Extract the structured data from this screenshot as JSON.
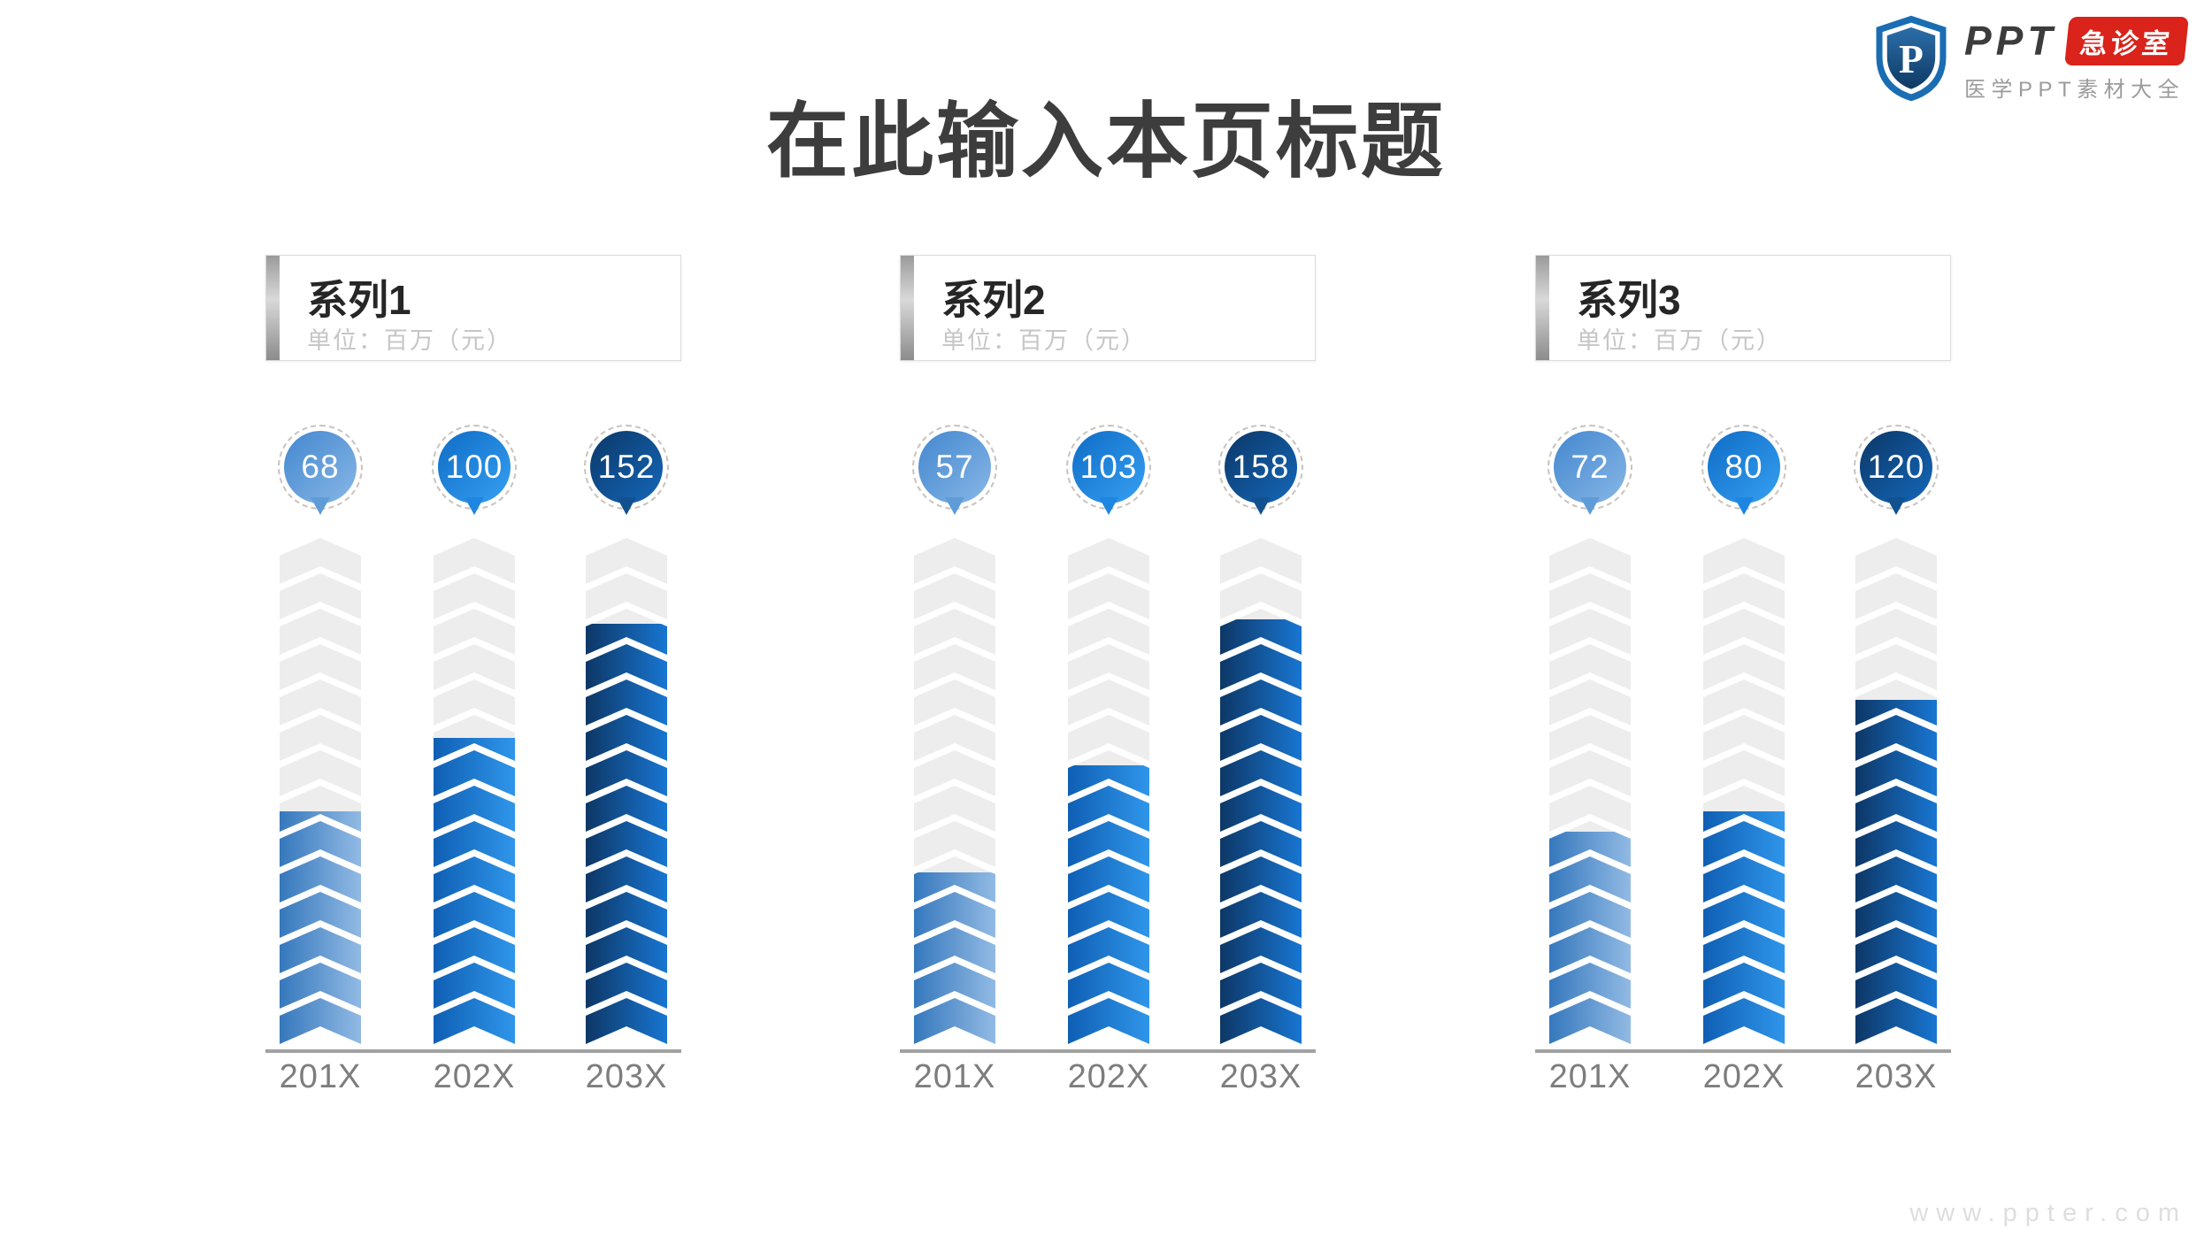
{
  "page": {
    "title": "在此输入本页标题",
    "watermark": "www.ppter.com"
  },
  "logo": {
    "brand": "PPT",
    "tag": "急诊室",
    "subtitle": "医学PPT素材大全",
    "shield_letter": "P",
    "colors": {
      "shield_ring": "#1a6db3",
      "shield_fill_top": "#2c6ea9",
      "shield_fill_bottom": "#0e3a63",
      "tag_bg": "#d9231b",
      "brand_text": "#3c3c3c"
    }
  },
  "chart_data": {
    "type": "bar",
    "categories": [
      "201X",
      "202X",
      "203X"
    ],
    "unit_label": "单位：百万（元）",
    "panels": [
      {
        "name": "系列1",
        "values": [
          68,
          100,
          152
        ],
        "fill_fractions": [
          0.46,
          0.605,
          0.83
        ]
      },
      {
        "name": "系列2",
        "values": [
          57,
          103,
          158
        ],
        "fill_fractions": [
          0.34,
          0.55,
          0.84
        ]
      },
      {
        "name": "系列3",
        "values": [
          72,
          80,
          120
        ],
        "fill_fractions": [
          0.42,
          0.46,
          0.68
        ]
      }
    ],
    "layout": {
      "legend": "none",
      "grid": "off",
      "track_segments": 14,
      "track_color": "#ededed",
      "axis_color": "#a2a2a2",
      "label_color": "#7d7d7d",
      "ring_color": "#c9c3bd",
      "bar_gradients": [
        [
          "#3578bd",
          "#92bae4"
        ],
        [
          "#0f5fb4",
          "#2f96ea"
        ],
        [
          "#0d3766",
          "#1876d2"
        ]
      ],
      "bubble_gradients": [
        [
          "#4387cf",
          "#88b7e6",
          "#5e9cd8"
        ],
        [
          "#0f6cc6",
          "#36a0f2",
          "#1e86e0"
        ],
        [
          "#0b3767",
          "#1568ba",
          "#11518f"
        ]
      ]
    }
  }
}
